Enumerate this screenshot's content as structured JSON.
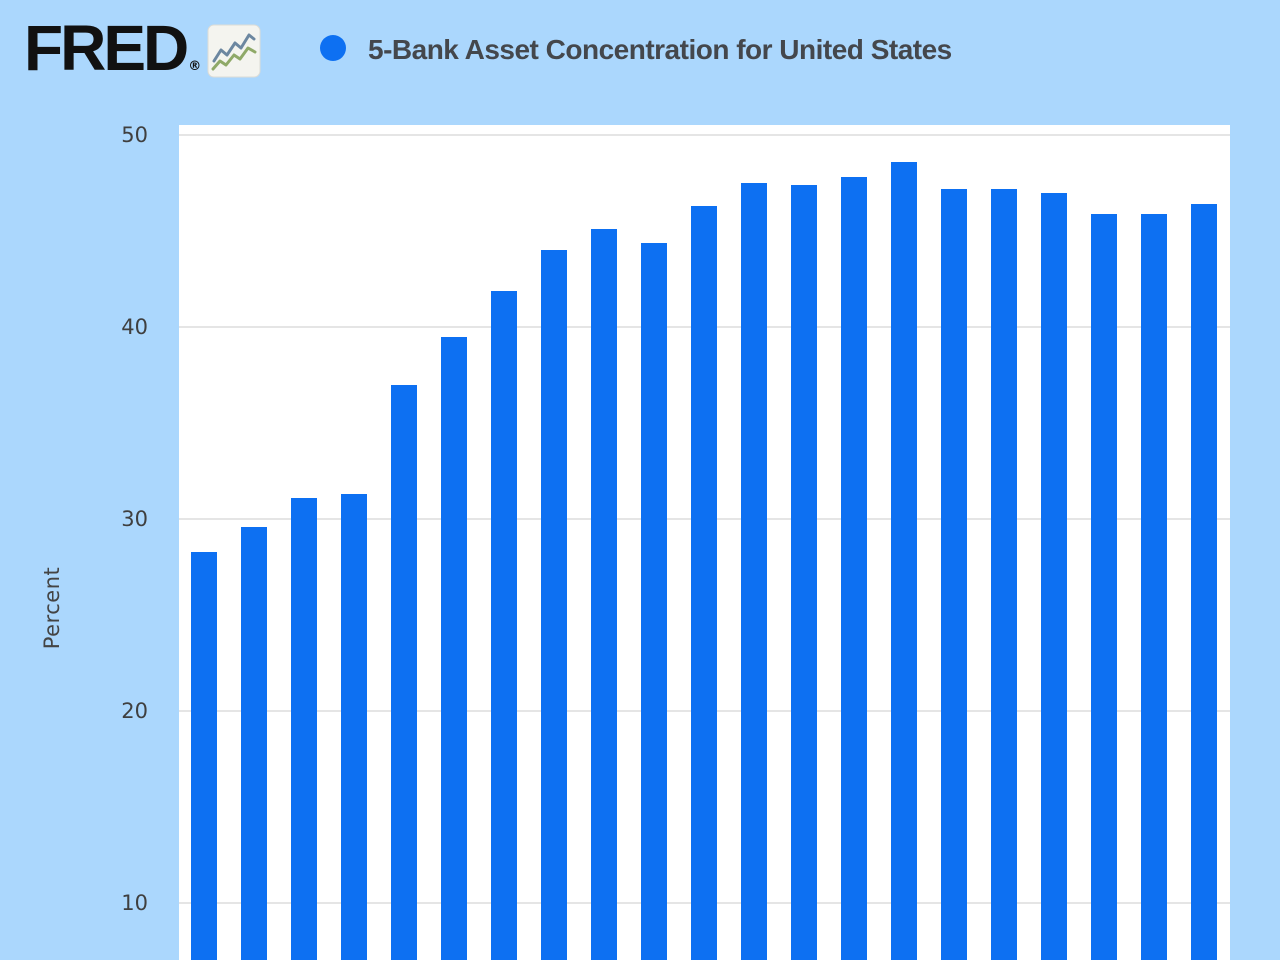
{
  "header": {
    "logo_text": "FRED",
    "logo_registered": "®",
    "title": "5-Bank Asset Concentration for United States"
  },
  "colors": {
    "page_background": "#abd7fd",
    "bar": "#0d70f2",
    "legend_marker": "#0d70f2",
    "plot_background": "#ffffff",
    "gridline": "#e5e5e5",
    "axis_text": "#3f3f3f",
    "title_text": "#44474c",
    "logo_text": "#111111",
    "logo_icon_line_green": "#8fa968",
    "logo_icon_line_slate": "#6c87a0"
  },
  "icons": {
    "logo_chart_icon": "fred-sparkline-icon",
    "legend_marker": "circle"
  },
  "chart_data": {
    "type": "bar",
    "title": "5-Bank Asset Concentration for United States",
    "series_name": "5-Bank Asset Concentration for United States",
    "xlabel": "",
    "ylabel": "Percent",
    "unit": "Percent",
    "yticks": [
      50,
      40,
      30,
      20,
      10
    ],
    "grid": "horizontal",
    "legend_position": "top",
    "x_axis_visible": false,
    "n_bars": 21,
    "values": [
      28.3,
      29.6,
      31.1,
      31.3,
      37.0,
      39.5,
      41.9,
      44.0,
      45.1,
      44.4,
      46.3,
      47.5,
      47.4,
      47.8,
      48.6,
      47.2,
      47.2,
      47.0,
      45.9,
      45.9,
      46.4
    ]
  }
}
